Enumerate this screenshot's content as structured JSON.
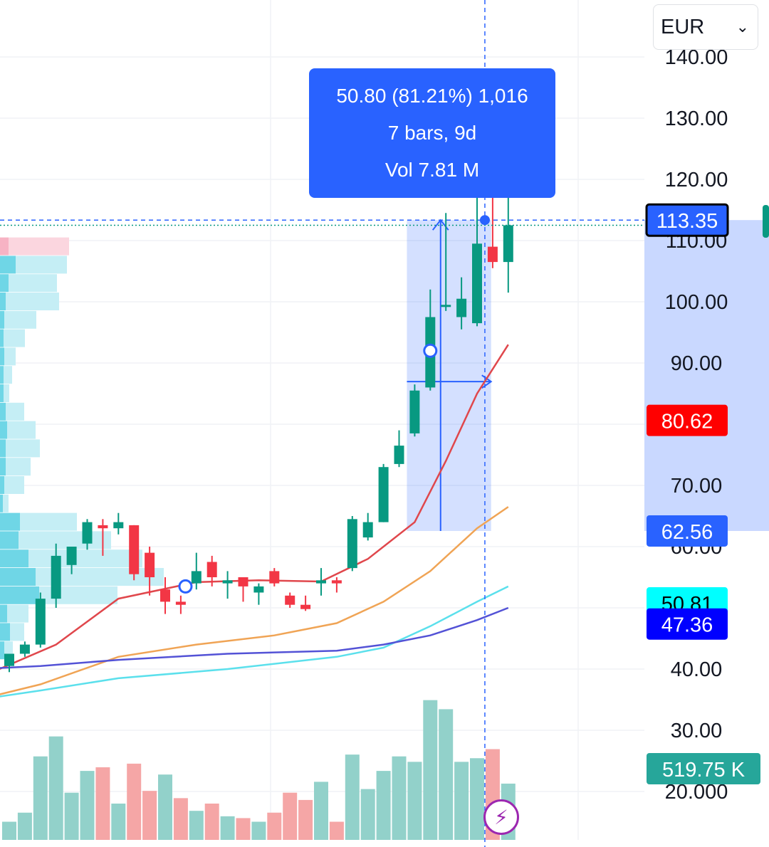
{
  "currency_selector": {
    "value": "EUR",
    "icon": "chevron-down-icon"
  },
  "measure_tooltip": {
    "line1": "50.80 (81.21%) 1,016",
    "line2": "7 bars, 9d",
    "line3": "Vol 7.81 M"
  },
  "flash_button": {
    "icon": "lightning-icon",
    "color": "#9c27b0"
  },
  "price_badges": [
    {
      "label": "113.35",
      "value": 113.35,
      "bg": "#2962ff",
      "fg": "#ffffff",
      "border": "#000000"
    },
    {
      "label": "80.62",
      "value": 80.62,
      "bg": "#ff0000",
      "fg": "#ffffff"
    },
    {
      "label": "62.56",
      "value": 62.56,
      "bg": "#2962ff",
      "fg": "#ffffff"
    },
    {
      "label": "50.81",
      "value": 50.81,
      "bg": "#00ffff",
      "fg": "#000000"
    },
    {
      "label": "47.36",
      "value": 47.36,
      "bg": "#0000ff",
      "fg": "#ffffff"
    }
  ],
  "volume_badge": {
    "label": "519.75 K",
    "bg": "#26a69a",
    "fg": "#ffffff"
  },
  "chart_data": {
    "type": "candlestick",
    "colors": {
      "up": "#089981",
      "down": "#f23645",
      "vol_up": "#92d1ca",
      "vol_down": "#f5a6a6",
      "measure": "#2962ff"
    },
    "y_axis": {
      "range": [
        18,
        153
      ],
      "ticks": [
        {
          "value": 140,
          "label": "140.00"
        },
        {
          "value": 130,
          "label": "130.00"
        },
        {
          "value": 120,
          "label": "120.00"
        },
        {
          "value": 110,
          "label": "110.00"
        },
        {
          "value": 100,
          "label": "100.00"
        },
        {
          "value": 90,
          "label": "90.00"
        },
        {
          "value": 70,
          "label": "70.00"
        },
        {
          "value": 60,
          "label": "60.00"
        },
        {
          "value": 40,
          "label": "40.00"
        },
        {
          "value": 30,
          "label": "30.00"
        },
        {
          "value": 20,
          "label": "20.000"
        }
      ]
    },
    "candles": [
      {
        "o": 40.5,
        "h": 42.5,
        "l": 39.5,
        "c": 42.5
      },
      {
        "o": 42.5,
        "h": 44.5,
        "l": 42.0,
        "c": 44.0
      },
      {
        "o": 44.0,
        "h": 52.5,
        "l": 43.5,
        "c": 51.5
      },
      {
        "o": 51.5,
        "h": 60.5,
        "l": 50.0,
        "c": 58.5
      },
      {
        "o": 57.0,
        "h": 60.0,
        "l": 55.5,
        "c": 60.0
      },
      {
        "o": 60.5,
        "h": 64.5,
        "l": 59.5,
        "c": 64.0
      },
      {
        "o": 63.5,
        "h": 64.5,
        "l": 58.5,
        "c": 63.0
      },
      {
        "o": 63.0,
        "h": 65.5,
        "l": 62.0,
        "c": 64.0
      },
      {
        "o": 63.5,
        "h": 63.5,
        "l": 54.5,
        "c": 55.5
      },
      {
        "o": 59.0,
        "h": 60.0,
        "l": 52.0,
        "c": 55.0
      },
      {
        "o": 53.0,
        "h": 55.0,
        "l": 49.0,
        "c": 51.0
      },
      {
        "o": 51.0,
        "h": 52.0,
        "l": 49.0,
        "c": 50.5
      },
      {
        "o": 54.0,
        "h": 59.0,
        "l": 53.0,
        "c": 56.0
      },
      {
        "o": 57.5,
        "h": 58.5,
        "l": 53.5,
        "c": 55.0
      },
      {
        "o": 54.0,
        "h": 56.0,
        "l": 51.5,
        "c": 54.5
      },
      {
        "o": 55.0,
        "h": 55.0,
        "l": 51.0,
        "c": 53.5
      },
      {
        "o": 52.5,
        "h": 54.0,
        "l": 50.5,
        "c": 53.5
      },
      {
        "o": 56.0,
        "h": 56.5,
        "l": 53.5,
        "c": 54.0
      },
      {
        "o": 52.0,
        "h": 52.5,
        "l": 50.0,
        "c": 50.5
      },
      {
        "o": 50.5,
        "h": 52.0,
        "l": 49.5,
        "c": 49.8
      },
      {
        "o": 54.0,
        "h": 56.5,
        "l": 52.0,
        "c": 54.5
      },
      {
        "o": 54.5,
        "h": 55.0,
        "l": 52.5,
        "c": 54.0
      },
      {
        "o": 56.5,
        "h": 65.0,
        "l": 56.0,
        "c": 64.5
      },
      {
        "o": 61.5,
        "h": 65.5,
        "l": 61.0,
        "c": 64.0
      },
      {
        "o": 64.0,
        "h": 73.5,
        "l": 64.0,
        "c": 73.0
      },
      {
        "o": 73.5,
        "h": 79.0,
        "l": 73.0,
        "c": 76.5
      },
      {
        "o": 78.5,
        "h": 86.5,
        "l": 78.0,
        "c": 85.5
      },
      {
        "o": 86.0,
        "h": 102.0,
        "l": 85.5,
        "c": 97.5
      },
      {
        "o": 99.5,
        "h": 114.5,
        "l": 98.5,
        "c": 99.5
      },
      {
        "o": 97.5,
        "h": 104.0,
        "l": 95.5,
        "c": 100.5
      },
      {
        "o": 96.5,
        "h": 117.0,
        "l": 96.0,
        "c": 109.5
      },
      {
        "o": 109.0,
        "h": 118.0,
        "l": 105.5,
        "c": 106.5
      },
      {
        "o": 106.5,
        "h": 117.5,
        "l": 101.5,
        "c": 112.5
      }
    ],
    "volume": {
      "range": [
        0,
        520
      ],
      "values": [
        50,
        75,
        230,
        285,
        130,
        190,
        200,
        100,
        210,
        135,
        180,
        115,
        80,
        100,
        65,
        60,
        50,
        75,
        130,
        110,
        160,
        50,
        235,
        140,
        190,
        230,
        215,
        385,
        360,
        215,
        225,
        250,
        155
      ],
      "down_flags": [
        0,
        0,
        0,
        0,
        0,
        0,
        1,
        0,
        1,
        1,
        0,
        1,
        0,
        1,
        0,
        1,
        0,
        1,
        1,
        1,
        0,
        1,
        0,
        0,
        0,
        0,
        0,
        0,
        0,
        0,
        0,
        1,
        0
      ]
    },
    "moving_averages": [
      {
        "color": "#e0474c",
        "points": [
          [
            -2,
            38.5
          ],
          [
            3,
            44
          ],
          [
            7,
            51.5
          ],
          [
            12,
            54.2
          ],
          [
            16,
            54.5
          ],
          [
            20,
            54.3
          ],
          [
            23,
            58
          ],
          [
            26,
            64
          ],
          [
            28,
            74
          ],
          [
            30,
            85
          ],
          [
            32,
            93
          ]
        ]
      },
      {
        "color": "#f0a455",
        "points": [
          [
            -2,
            35
          ],
          [
            2,
            37.5
          ],
          [
            7,
            42
          ],
          [
            12,
            44
          ],
          [
            17,
            45.5
          ],
          [
            21,
            47.5
          ],
          [
            24,
            51
          ],
          [
            27,
            56
          ],
          [
            30,
            63
          ],
          [
            32,
            66.5
          ]
        ]
      },
      {
        "color": "#5be0ec",
        "points": [
          [
            -2,
            35
          ],
          [
            2,
            36.5
          ],
          [
            7,
            38.5
          ],
          [
            14,
            40
          ],
          [
            21,
            42
          ],
          [
            24,
            43.5
          ],
          [
            27,
            47
          ],
          [
            30,
            51
          ],
          [
            32,
            53.5
          ]
        ]
      },
      {
        "color": "#5352d6",
        "points": [
          [
            -2,
            40
          ],
          [
            2,
            40.5
          ],
          [
            7,
            41.5
          ],
          [
            14,
            42.5
          ],
          [
            21,
            43
          ],
          [
            24,
            44
          ],
          [
            27,
            45.5
          ],
          [
            30,
            48
          ],
          [
            32,
            50
          ]
        ]
      }
    ],
    "volume_profile": [
      {
        "price": 109,
        "a": 12,
        "b": 85,
        "color": "down"
      },
      {
        "price": 106,
        "a": 22,
        "b": 72,
        "color": "up"
      },
      {
        "price": 103,
        "a": 12,
        "b": 68,
        "color": "up"
      },
      {
        "price": 100,
        "a": 8,
        "b": 75,
        "color": "up"
      },
      {
        "price": 97,
        "a": 6,
        "b": 45,
        "color": "up"
      },
      {
        "price": 94,
        "a": 5,
        "b": 30,
        "color": "up"
      },
      {
        "price": 91,
        "a": 6,
        "b": 16,
        "color": "up"
      },
      {
        "price": 88,
        "a": 5,
        "b": 12,
        "color": "up"
      },
      {
        "price": 85,
        "a": 5,
        "b": 8,
        "color": "up"
      },
      {
        "price": 82,
        "a": 8,
        "b": 26,
        "color": "up"
      },
      {
        "price": 79,
        "a": 10,
        "b": 40,
        "color": "up"
      },
      {
        "price": 76,
        "a": 8,
        "b": 48,
        "color": "up"
      },
      {
        "price": 73,
        "a": 8,
        "b": 35,
        "color": "up"
      },
      {
        "price": 70,
        "a": 6,
        "b": 28,
        "color": "up"
      },
      {
        "price": 67,
        "a": 4,
        "b": 8,
        "color": "up"
      },
      {
        "price": 64,
        "a": 28,
        "b": 80,
        "color": "up"
      },
      {
        "price": 61,
        "a": 26,
        "b": 130,
        "color": "up"
      },
      {
        "price": 58,
        "a": 40,
        "b": 160,
        "color": "up"
      },
      {
        "price": 55,
        "a": 50,
        "b": 180,
        "color": "up"
      },
      {
        "price": 52,
        "a": 55,
        "b": 110,
        "color": "up"
      },
      {
        "price": 49,
        "a": 10,
        "b": 30,
        "color": "up"
      },
      {
        "price": 46,
        "a": 14,
        "b": 20,
        "color": "up"
      },
      {
        "price": 43,
        "a": 6,
        "b": 12,
        "color": "up"
      }
    ],
    "measure": {
      "from_bar": 25.5,
      "to_bar": 30.9,
      "low": 62.56,
      "high": 113.35
    },
    "crosshair": {
      "bar": 30.5,
      "price": 113.35
    },
    "annotations": [
      {
        "bar": 11.3,
        "price": 53.5
      },
      {
        "bar": 27,
        "price": 92
      }
    ]
  }
}
